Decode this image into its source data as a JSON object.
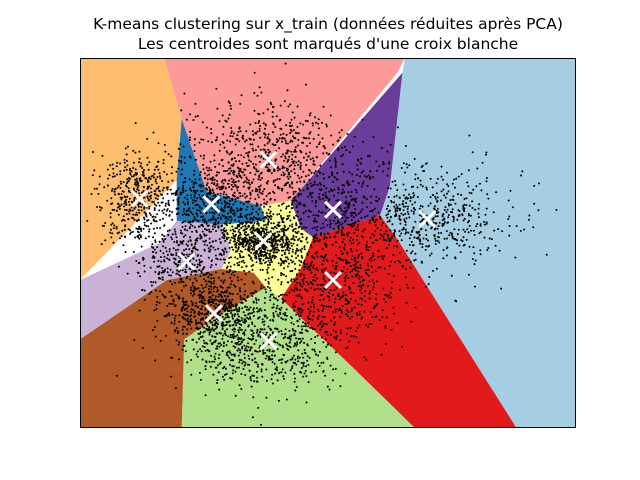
{
  "chart_data": {
    "type": "scatter",
    "title": "K-means clustering sur x_train (données réduites après PCA)",
    "subtitle": "Les centroides sont marqués d'une croix blanche",
    "xlabel": "",
    "ylabel": "",
    "xlim": [
      0,
      100
    ],
    "ylim": [
      0,
      100
    ],
    "grid": false,
    "ticks_visible": false,
    "point_color": "#000000",
    "centroid_marker_color": "#ffffff",
    "regions": [
      {
        "name": "orange",
        "color": "#fdbf6f",
        "polygon": [
          [
            0,
            100
          ],
          [
            17,
            100
          ],
          [
            20.5,
            83.5
          ],
          [
            19.5,
            67
          ],
          [
            0,
            40
          ]
        ]
      },
      {
        "name": "salmon",
        "color": "#fb9a99",
        "polygon": [
          [
            17,
            100
          ],
          [
            65.5,
            100
          ],
          [
            64,
            96
          ],
          [
            42.5,
            61.5
          ],
          [
            36.5,
            60
          ],
          [
            25.5,
            64
          ],
          [
            19.5,
            67
          ],
          [
            20.5,
            83.5
          ]
        ]
      },
      {
        "name": "lightblue",
        "color": "#a6cee3",
        "polygon": [
          [
            65.5,
            100
          ],
          [
            100,
            100
          ],
          [
            100,
            0
          ],
          [
            88,
            0
          ],
          [
            64,
            51
          ],
          [
            60.5,
            57.5
          ],
          [
            62.5,
            65.5
          ],
          [
            65,
            96
          ]
        ]
      },
      {
        "name": "purple",
        "color": "#6a3d9a",
        "polygon": [
          [
            65,
            96
          ],
          [
            62.5,
            65.5
          ],
          [
            60.5,
            57.5
          ],
          [
            47,
            51.5
          ],
          [
            44.5,
            54
          ],
          [
            42.5,
            61.5
          ]
        ]
      },
      {
        "name": "red",
        "color": "#e31a1c",
        "polygon": [
          [
            60.5,
            57.5
          ],
          [
            64,
            51
          ],
          [
            88,
            0
          ],
          [
            67.5,
            0
          ],
          [
            54.5,
            17
          ],
          [
            40.5,
            35
          ],
          [
            44.5,
            54
          ],
          [
            47,
            51.5
          ]
        ]
      },
      {
        "name": "lightgreen",
        "color": "#b2df8a",
        "polygon": [
          [
            20.5,
            0
          ],
          [
            67.5,
            0
          ],
          [
            54.5,
            17
          ],
          [
            40.5,
            35
          ],
          [
            37.5,
            38
          ],
          [
            27.5,
            30
          ],
          [
            21,
            24
          ]
        ]
      },
      {
        "name": "brown",
        "color": "#b15928",
        "polygon": [
          [
            0,
            0
          ],
          [
            20.5,
            0
          ],
          [
            21,
            24
          ],
          [
            27.5,
            30
          ],
          [
            37.5,
            38
          ],
          [
            35,
            42
          ],
          [
            28.5,
            43
          ],
          [
            17.5,
            40
          ],
          [
            0,
            24
          ]
        ]
      },
      {
        "name": "lavender",
        "color": "#cab2d6",
        "polygon": [
          [
            0,
            24
          ],
          [
            17.5,
            40
          ],
          [
            28.5,
            43
          ],
          [
            30.5,
            48
          ],
          [
            28.5,
            55
          ],
          [
            19.5,
            56
          ],
          [
            16,
            50
          ],
          [
            0,
            40
          ]
        ]
      },
      {
        "name": "blue",
        "color": "#1f78b4",
        "polygon": [
          [
            20.5,
            83.5
          ],
          [
            25.5,
            64
          ],
          [
            36.5,
            60
          ],
          [
            37.5,
            56
          ],
          [
            28.5,
            55
          ],
          [
            19.5,
            56
          ],
          [
            19.5,
            67
          ]
        ]
      },
      {
        "name": "yellow",
        "color": "#ffff99",
        "polygon": [
          [
            36.5,
            60
          ],
          [
            42.5,
            61.5
          ],
          [
            44.5,
            54
          ],
          [
            47,
            51.5
          ],
          [
            44.5,
            43
          ],
          [
            40.5,
            35
          ],
          [
            37.5,
            38
          ],
          [
            35,
            42
          ],
          [
            28.5,
            43
          ],
          [
            30.5,
            48
          ],
          [
            28.5,
            55
          ],
          [
            37.5,
            56
          ]
        ]
      }
    ],
    "clusters": [
      {
        "name": "orange",
        "centroid": [
          12,
          62
        ],
        "spread": [
          4,
          7
        ],
        "count": 450
      },
      {
        "name": "blue",
        "centroid": [
          26.5,
          60.5
        ],
        "spread": [
          5,
          5
        ],
        "count": 450
      },
      {
        "name": "salmon",
        "centroid": [
          38,
          72.5
        ],
        "spread": [
          8,
          8
        ],
        "count": 650
      },
      {
        "name": "purple",
        "centroid": [
          51,
          59
        ],
        "spread": [
          7,
          7
        ],
        "count": 350
      },
      {
        "name": "lightblue",
        "centroid": [
          70,
          56.5
        ],
        "spread": [
          8.5,
          7.5
        ],
        "count": 550
      },
      {
        "name": "yellow",
        "centroid": [
          37,
          50.5
        ],
        "spread": [
          3.5,
          3.5
        ],
        "count": 650
      },
      {
        "name": "lavender",
        "centroid": [
          21.5,
          45
        ],
        "spread": [
          5,
          5
        ],
        "count": 350
      },
      {
        "name": "red",
        "centroid": [
          51,
          40
        ],
        "spread": [
          7,
          7
        ],
        "count": 500
      },
      {
        "name": "brown",
        "centroid": [
          27,
          31
        ],
        "spread": [
          5,
          5
        ],
        "count": 550
      },
      {
        "name": "lightgreen",
        "centroid": [
          38,
          23.5
        ],
        "spread": [
          8,
          7
        ],
        "count": 650
      }
    ]
  }
}
